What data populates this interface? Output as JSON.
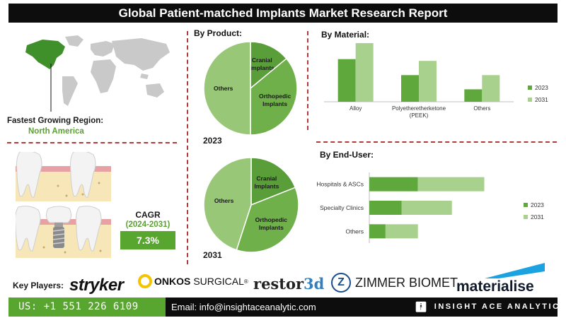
{
  "title": "Global Patient-matched Implants Market Research Report",
  "region": {
    "label": "Fastest Growing Region:",
    "value": "North America"
  },
  "cagr": {
    "label": "CAGR",
    "period": "(2024-2031)",
    "value": "7.3%"
  },
  "key_players": {
    "label": "Key Players:",
    "logos": {
      "stryker": "stryker",
      "onkos_bold": "ONKOS",
      "onkos_rest": "SURGICAL",
      "onkos_mark": "®",
      "restor_part": "restor",
      "restor_3d": "3d",
      "zimmer": "ZIMMER BIOMET",
      "zimmer_mark": "Z",
      "materialise": "materialise"
    }
  },
  "footer": {
    "phone": "US: +1 551 226 6109",
    "email": "Email: info@insightaceanalytic.com",
    "brand": "INSIGHT ACE ANALYTIC",
    "brand_icon": "person-icon"
  },
  "colors": {
    "dark_green": "#58a630",
    "light_green": "#a9d18e",
    "mid_green": "#6aa84f",
    "divider": "#b33a3a"
  },
  "chart_data": [
    {
      "type": "pie",
      "title": "By Product:",
      "year_label": "2023",
      "categories": [
        "Cranial Implants",
        "Orthopedic Implants",
        "Others"
      ],
      "values": [
        14,
        36,
        50
      ],
      "colors": [
        "#5a9e3a",
        "#6fb04a",
        "#98c877"
      ]
    },
    {
      "type": "pie",
      "year_label": "2031",
      "categories": [
        "Cranial Implants",
        "Orthopedic Implants",
        "Others"
      ],
      "values": [
        19,
        36,
        45
      ],
      "colors": [
        "#5a9e3a",
        "#6fb04a",
        "#98c877"
      ]
    },
    {
      "type": "bar",
      "title": "By Material:",
      "categories": [
        "Alloy",
        "Polyetheretherketone (PEEK)",
        "Others"
      ],
      "category_lines": [
        [
          "Alloy"
        ],
        [
          "Polyetheretherketone",
          "(PEEK)"
        ],
        [
          "Others"
        ]
      ],
      "series": [
        {
          "name": "2023",
          "values": [
            48,
            30,
            14
          ],
          "color": "#5fa83c"
        },
        {
          "name": "2031",
          "values": [
            66,
            46,
            30
          ],
          "color": "#a9d18e"
        }
      ],
      "ylim": [
        0,
        70
      ],
      "legend": "right"
    },
    {
      "type": "bar",
      "orientation": "horizontal",
      "stacked": true,
      "title": "By End-User:",
      "categories": [
        "Hospitals & ASCs",
        "Specialty Clinics",
        "Others"
      ],
      "series": [
        {
          "name": "2023",
          "values": [
            30,
            20,
            10
          ],
          "color": "#5fa83c"
        },
        {
          "name": "2031",
          "values": [
            41,
            31,
            20
          ],
          "color": "#a9d18e"
        }
      ],
      "xlim": [
        0,
        90
      ],
      "legend": "right"
    }
  ]
}
